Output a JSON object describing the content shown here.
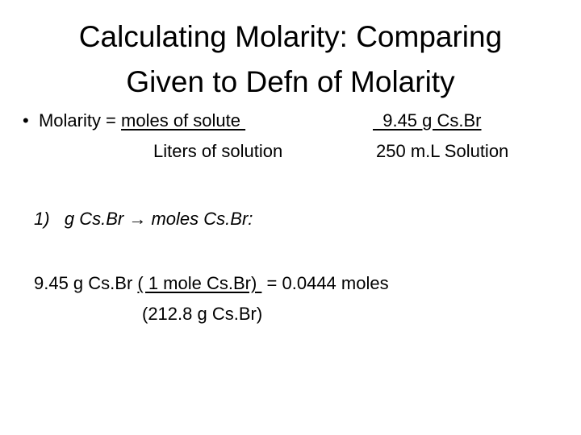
{
  "slide": {
    "title_line1": "Calculating Molarity: Comparing",
    "title_line2": "Given to Defn of Molarity",
    "bullet": "•",
    "molarity_label": "Molarity = ",
    "molarity_numerator": "moles of solute ",
    "molarity_denominator": "Liters of solution",
    "given_numerator": "  9.45 g Cs.Br",
    "given_denominator": "250 m.L Solution",
    "step1_number": "1)",
    "step1_text": "g Cs.Br → moles Cs.Br:",
    "calc_given": "9.45 g Cs.Br ",
    "calc_factor_numerator": "( 1 mole Cs.Br) ",
    "calc_result": " = 0.0444 moles",
    "calc_factor_denominator": "(212.8 g Cs.Br)"
  }
}
